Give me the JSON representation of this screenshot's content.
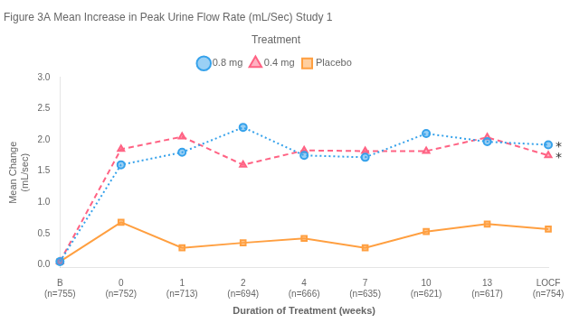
{
  "chart_data": {
    "type": "line",
    "title": "Figure 3A Mean Increase in Peak Urine Flow Rate (mL/Sec) Study 1",
    "xlabel": "Duration of Treatment (weeks)",
    "ylabel": [
      "Mean Change",
      "(mL/sec)"
    ],
    "legend_title": "Treatment",
    "categories": [
      "B\n(n=755)",
      "0\n(n=752)",
      "1\n(n=713)",
      "2\n(n=694)",
      "4\n(n=666)",
      "7\n(n=635)",
      "10\n(n=621)",
      "13\n(n=617)",
      "LOCF\n(n=754)"
    ],
    "series": [
      {
        "name": "0.8 mg",
        "values": [
          0.05,
          1.6,
          1.8,
          2.2,
          1.75,
          1.72,
          2.1,
          1.97,
          1.92
        ],
        "marker": "circle",
        "line_style": "dotted"
      },
      {
        "name": "0.4 mg",
        "values": [
          0.05,
          1.85,
          2.05,
          1.6,
          1.83,
          1.82,
          1.82,
          2.04,
          1.75
        ],
        "marker": "triangle",
        "line_style": "dashed"
      },
      {
        "name": "Placebo",
        "values": [
          0.05,
          0.68,
          0.27,
          0.35,
          0.42,
          0.27,
          0.53,
          0.65,
          0.57
        ],
        "marker": "square",
        "line_style": "solid"
      }
    ],
    "ylim": [
      -0.05,
      3.0
    ],
    "yticks": [
      {
        "value": 0,
        "label": "0.0"
      },
      0.5,
      {
        "value": 1,
        "label": "1.0"
      },
      1.5,
      {
        "value": 2,
        "label": "2.0"
      },
      2.5,
      {
        "value": 3,
        "label": "3.0"
      }
    ],
    "grid": false,
    "legend": "top",
    "annotations": [
      {
        "text": "*",
        "x": "LOCF\n(n=754)",
        "y": 1.92
      },
      {
        "text": "*",
        "x": "LOCF\n(n=754)",
        "y": 1.75
      }
    ]
  }
}
